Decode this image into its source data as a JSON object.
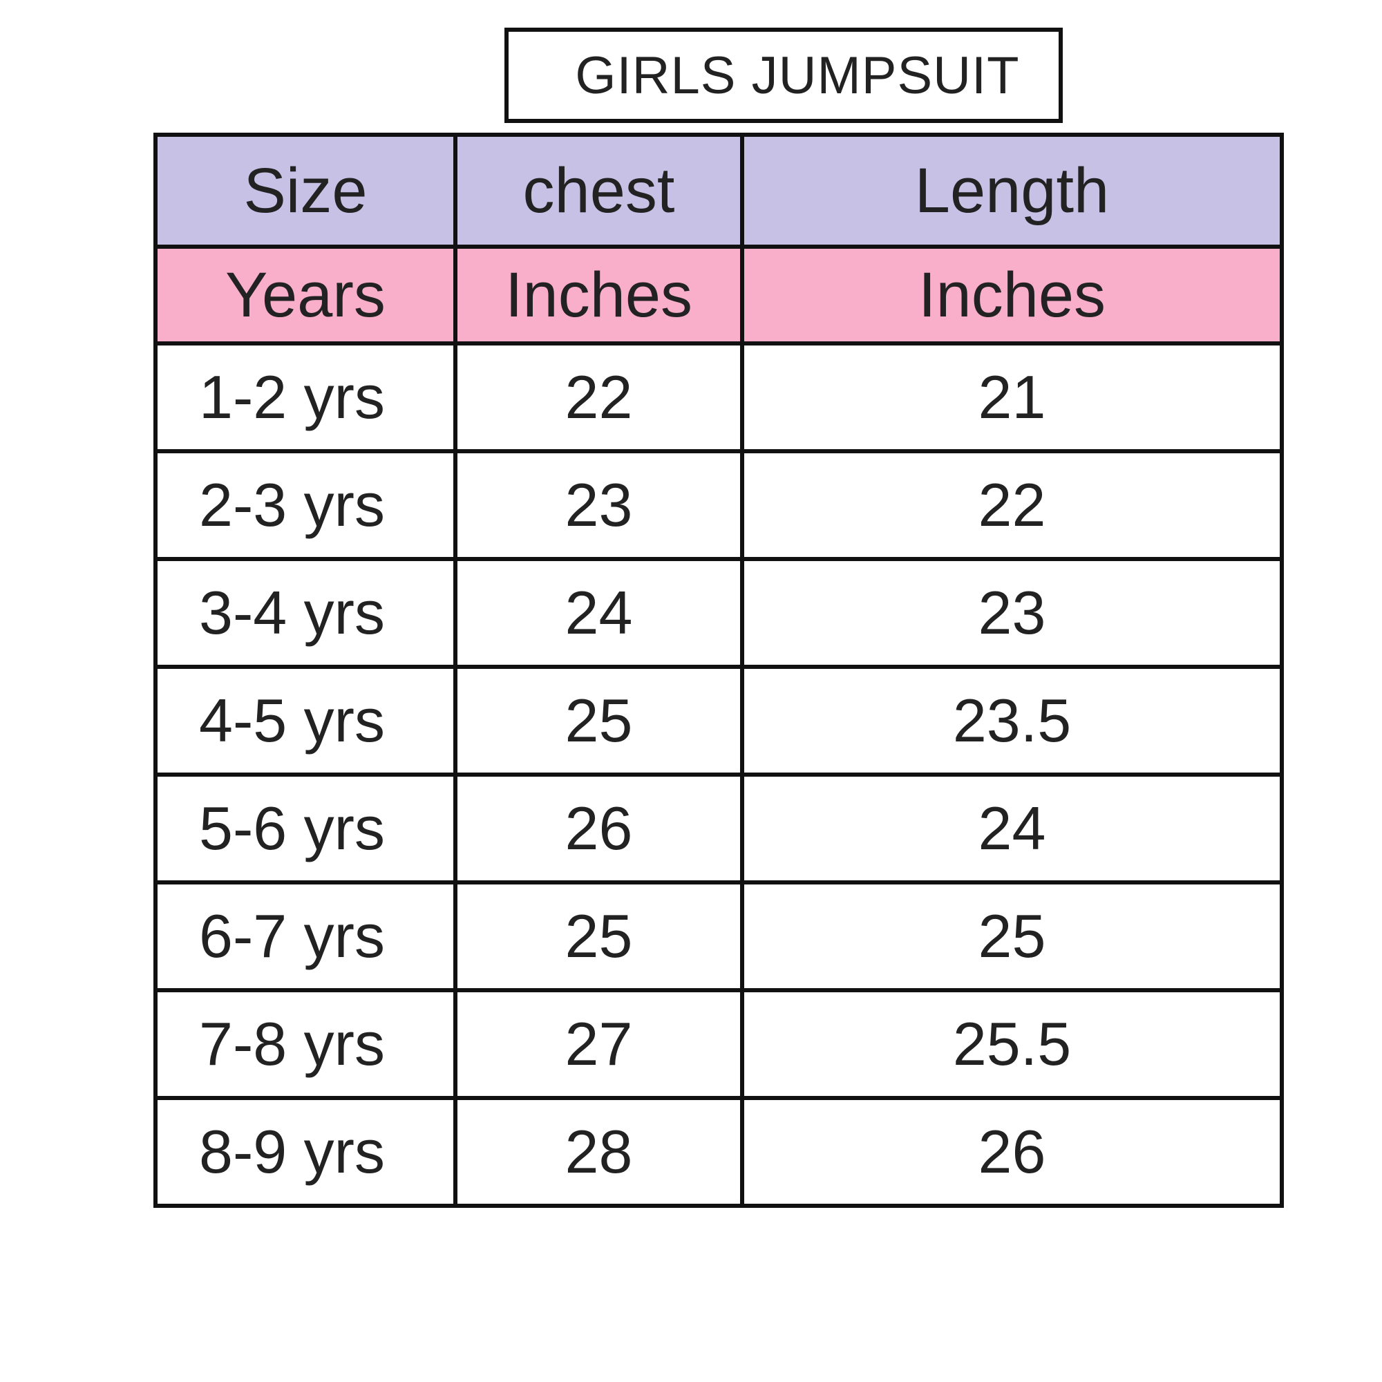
{
  "chart_data": {
    "type": "table",
    "title": "GIRLS JUMPSUIT",
    "columns": [
      "Size",
      "chest",
      "Length"
    ],
    "units": [
      "Years",
      "Inches",
      "Inches"
    ],
    "rows": [
      {
        "size": "1-2 yrs",
        "chest": "22",
        "length": "21"
      },
      {
        "size": "2-3 yrs",
        "chest": "23",
        "length": "22"
      },
      {
        "size": "3-4 yrs",
        "chest": "24",
        "length": "23"
      },
      {
        "size": "4-5 yrs",
        "chest": "25",
        "length": "23.5"
      },
      {
        "size": "5-6 yrs",
        "chest": "26",
        "length": "24"
      },
      {
        "size": "6-7 yrs",
        "chest": "25",
        "length": "25"
      },
      {
        "size": "7-8 yrs",
        "chest": "27",
        "length": "25.5"
      },
      {
        "size": "8-9 yrs",
        "chest": "28",
        "length": "26"
      }
    ]
  },
  "colors": {
    "header_row": "#c8c1e6",
    "unit_row": "#f9aec9",
    "border": "#111111"
  }
}
